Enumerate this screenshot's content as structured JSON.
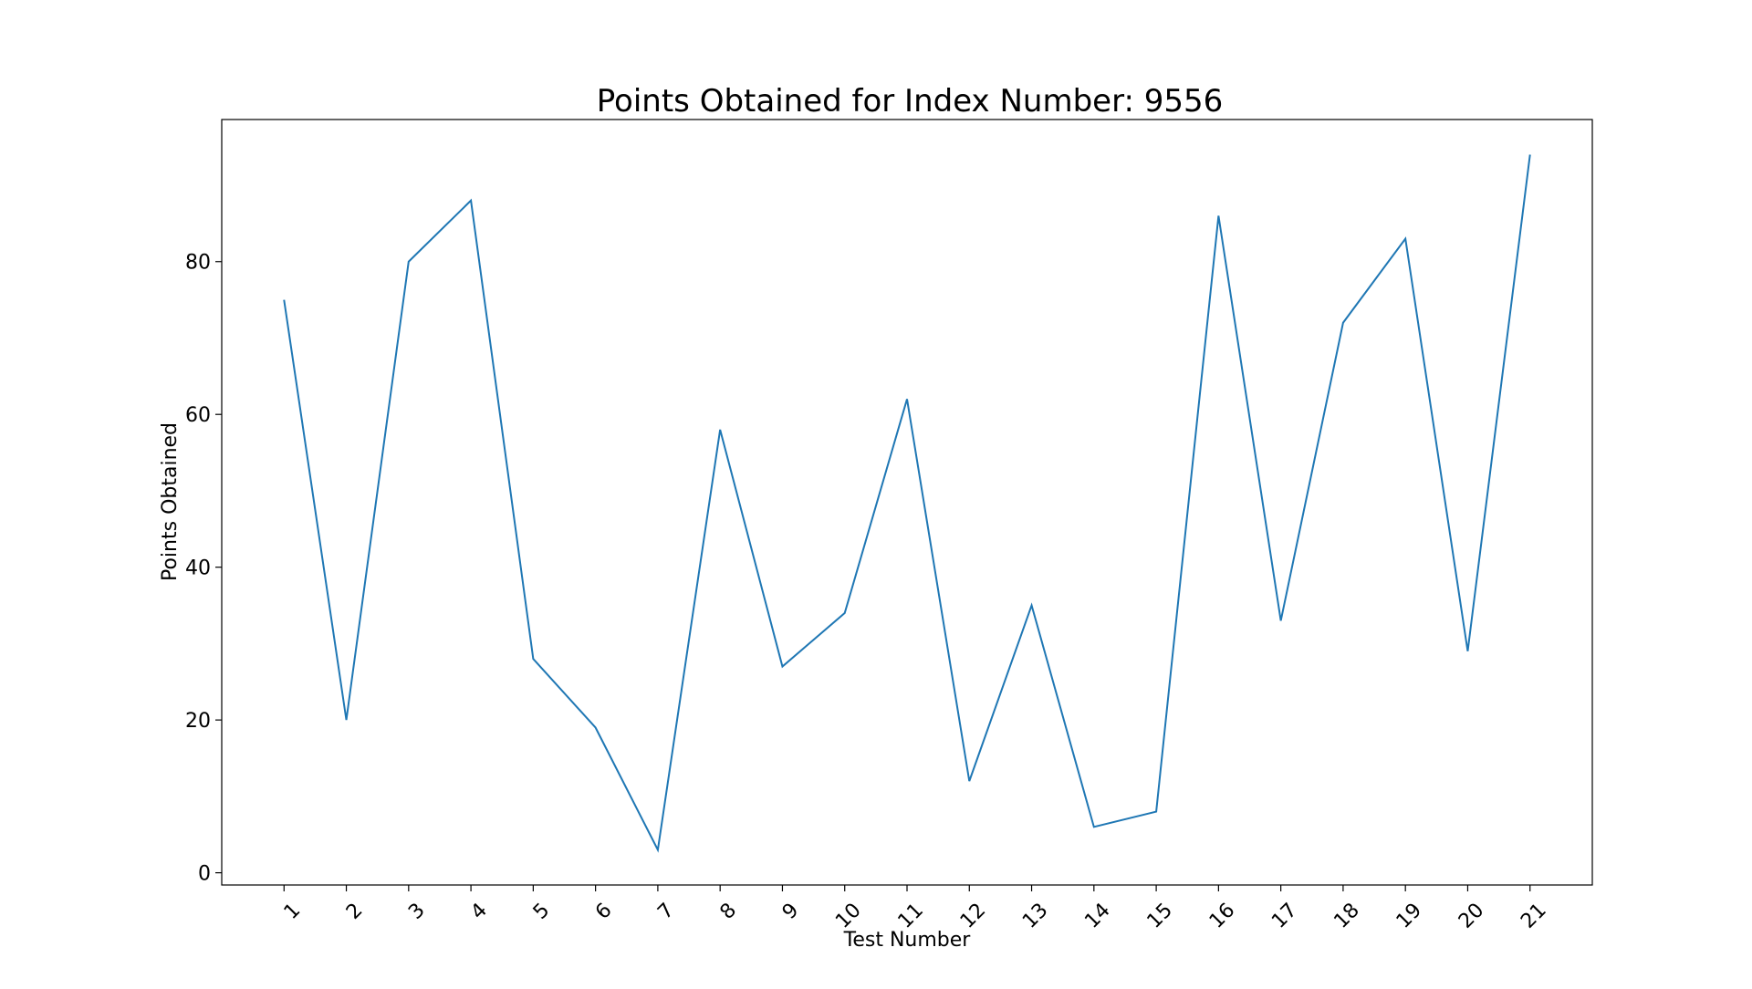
{
  "chart_data": {
    "type": "line",
    "title": "Points Obtained for Index Number: 9556",
    "xlabel": "Test Number",
    "ylabel": "Points Obtained",
    "categories": [
      "1",
      "2",
      "3",
      "4",
      "5",
      "6",
      "7",
      "8",
      "9",
      "10",
      "11",
      "12",
      "13",
      "14",
      "15",
      "16",
      "17",
      "18",
      "19",
      "20",
      "21"
    ],
    "series": [
      {
        "values": [
          75,
          20,
          80,
          88,
          28,
          19,
          3,
          58,
          27,
          34,
          62,
          12,
          35,
          6,
          8,
          86,
          33,
          72,
          83,
          29,
          94
        ]
      }
    ],
    "y_ticks": [
      0,
      20,
      40,
      60,
      80
    ],
    "ylim": [
      -1.6,
      98.6
    ],
    "grid": false,
    "line_color": "#1f77b4"
  }
}
